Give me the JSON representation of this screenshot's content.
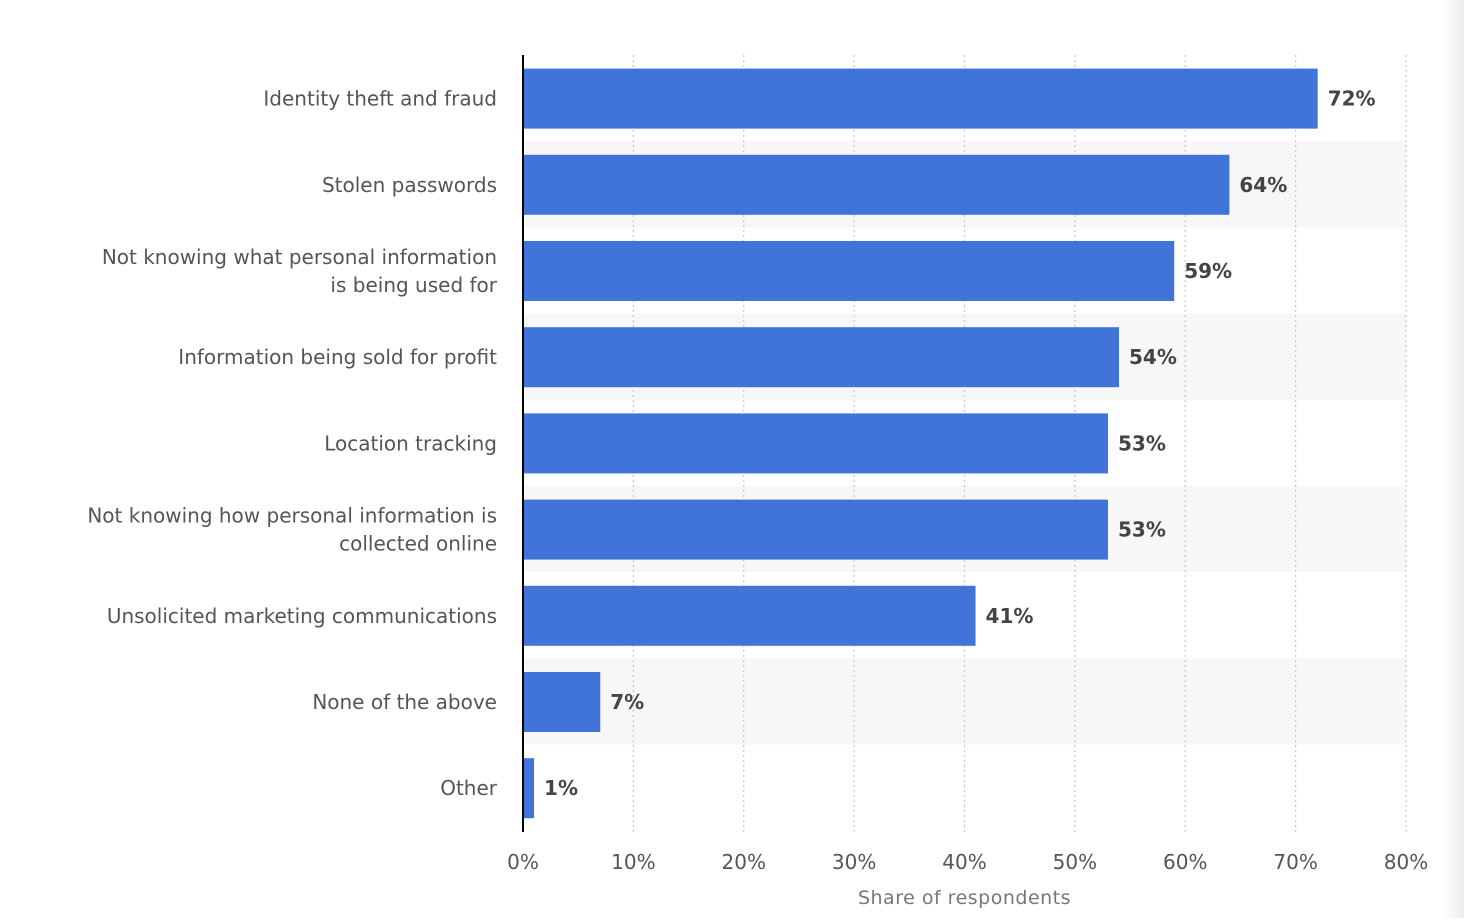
{
  "chart_data": {
    "type": "bar",
    "orientation": "horizontal",
    "categories": [
      [
        "Identity theft and fraud"
      ],
      [
        "Stolen passwords"
      ],
      [
        "Not knowing what personal information",
        "is being used for"
      ],
      [
        "Information being sold for profit"
      ],
      [
        "Location tracking"
      ],
      [
        "Not knowing how personal information is",
        "collected online"
      ],
      [
        "Unsolicited marketing communications"
      ],
      [
        "None of the above"
      ],
      [
        "Other"
      ]
    ],
    "values": [
      72,
      64,
      59,
      54,
      53,
      53,
      41,
      7,
      1
    ],
    "value_labels": [
      "72%",
      "64%",
      "59%",
      "54%",
      "53%",
      "53%",
      "41%",
      "7%",
      "1%"
    ],
    "xlim": [
      0,
      80
    ],
    "x_ticks": [
      0,
      10,
      20,
      30,
      40,
      50,
      60,
      70,
      80
    ],
    "x_tick_labels": [
      "0%",
      "10%",
      "20%",
      "30%",
      "40%",
      "50%",
      "60%",
      "70%",
      "80%"
    ],
    "xlabel": "Share of respondents",
    "ylabel": "",
    "grid": true,
    "colors": {
      "bar": "#4174d9",
      "label_text": "#555555",
      "value_text": "#444444",
      "grid": "#c8c8c8",
      "band": "#f7f7f7",
      "axis": "#000000"
    }
  }
}
